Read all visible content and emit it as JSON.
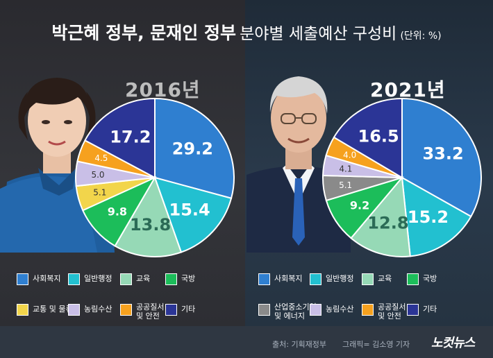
{
  "title": {
    "bold_part": "박근혜 정부, 문재인 정부",
    "normal_part": "분야별 세출예산 구성비",
    "unit": "(단위: %)"
  },
  "footer": {
    "source": "출처: 기획재정부",
    "credit": "그래픽= 김소영 기자",
    "logo": "노컷뉴스"
  },
  "chart_data": [
    {
      "type": "pie",
      "title": "2016년",
      "categories": [
        "사회복지",
        "일반행정",
        "교육",
        "국방",
        "교통 및 물류",
        "농림수산",
        "공공질서 및 안전",
        "기타"
      ],
      "values": [
        29.2,
        15.4,
        13.8,
        9.8,
        5.1,
        5.0,
        4.5,
        17.2
      ],
      "colors": [
        "#2f7fd0",
        "#22c0d0",
        "#96d9b6",
        "#1cbd5a",
        "#f2d54b",
        "#c9bfe7",
        "#f6a11e",
        "#2b3596"
      ],
      "legend": [
        {
          "label": "사회복지",
          "color": "#2f7fd0"
        },
        {
          "label": "일반행정",
          "color": "#22c0d0"
        },
        {
          "label": "교육",
          "color": "#96d9b6"
        },
        {
          "label": "국방",
          "color": "#1cbd5a"
        },
        {
          "label": "교통 및 물류",
          "color": "#f2d54b"
        },
        {
          "label": "농림수산",
          "color": "#c9bfe7"
        },
        {
          "label": "공공질서\n및 안전",
          "color": "#f6a11e"
        },
        {
          "label": "기타",
          "color": "#2b3596"
        }
      ]
    },
    {
      "type": "pie",
      "title": "2021년",
      "categories": [
        "사회복지",
        "일반행정",
        "교육",
        "국방",
        "산업중소기업 및 에너지",
        "농림수산",
        "공공질서 및 안전",
        "기타"
      ],
      "values": [
        33.2,
        15.2,
        12.8,
        9.2,
        5.1,
        4.1,
        4.0,
        16.5
      ],
      "colors": [
        "#2f7fd0",
        "#22c0d0",
        "#96d9b6",
        "#1cbd5a",
        "#8a8a8a",
        "#c9bfe7",
        "#f6a11e",
        "#2b3596"
      ],
      "legend": [
        {
          "label": "사회복지",
          "color": "#2f7fd0"
        },
        {
          "label": "일반행정",
          "color": "#22c0d0"
        },
        {
          "label": "교육",
          "color": "#96d9b6"
        },
        {
          "label": "국방",
          "color": "#1cbd5a"
        },
        {
          "label": "산업중소기업\n및 에너지",
          "color": "#8a8a8a"
        },
        {
          "label": "농림수산",
          "color": "#c9bfe7"
        },
        {
          "label": "공공질서\n및 안전",
          "color": "#f6a11e"
        },
        {
          "label": "기타",
          "color": "#2b3596"
        }
      ]
    }
  ]
}
